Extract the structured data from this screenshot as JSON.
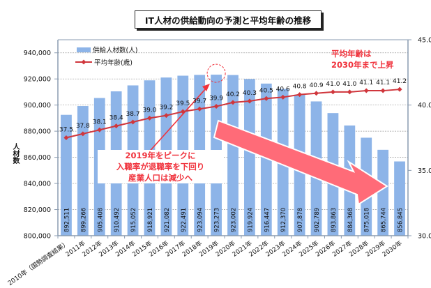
{
  "chart_data": {
    "type": "bar+line",
    "title": "IT人材の供給動向の予測と平均年齢の推移",
    "ylabel": "人材数",
    "y2label": "",
    "ylim": [
      800000,
      950000
    ],
    "yticks": [
      "800,000",
      "820,000",
      "840,000",
      "860,000",
      "880,000",
      "900,000",
      "920,000",
      "940,000"
    ],
    "y2lim": [
      30.0,
      45.0
    ],
    "y2ticks": [
      "30.0",
      "35.0",
      "40.0",
      "45.0"
    ],
    "grid": true,
    "legend_position": "top-left",
    "categories": [
      "2010年（国勢調査結果）",
      "2011年",
      "2012年",
      "2013年",
      "2014年",
      "2015年",
      "2016年",
      "2017年",
      "2018年",
      "2019年",
      "2020年",
      "2021年",
      "2022年",
      "2023年",
      "2024年",
      "2025年",
      "2026年",
      "2027年",
      "2028年",
      "2029年",
      "2030年"
    ],
    "series": [
      {
        "name": "供給人材数(人)",
        "type": "bar",
        "axis": "left",
        "color": "#8db4e8",
        "values": [
          892511,
          899266,
          905408,
          910492,
          915052,
          918921,
          921082,
          922491,
          923094,
          923273,
          923002,
          919924,
          916447,
          912370,
          907878,
          902789,
          893863,
          884368,
          875018,
          865744,
          856845
        ],
        "labels": [
          "892,511",
          "899,266",
          "905,408",
          "910,492",
          "915,052",
          "918,921",
          "921,082",
          "922,491",
          "923,094",
          "923,273",
          "923,002",
          "919,924",
          "916,447",
          "912,370",
          "907,878",
          "902,789",
          "893,863",
          "884,368",
          "875,018",
          "865,744",
          "856,845"
        ]
      },
      {
        "name": "平均年齢(歳)",
        "type": "line",
        "axis": "right",
        "color": "#d0363c",
        "values": [
          37.5,
          37.8,
          38.1,
          38.4,
          38.7,
          39.0,
          39.2,
          39.5,
          39.7,
          39.9,
          40.2,
          40.3,
          40.5,
          40.6,
          40.8,
          40.9,
          41.0,
          41.0,
          41.1,
          41.1,
          41.2
        ],
        "labels": [
          "37.5",
          "37.8",
          "38.1",
          "38.4",
          "38.7",
          "39.0",
          "39.2",
          "39.5",
          "39.7",
          "39.9",
          "40.2",
          "40.3",
          "40.5",
          "40.6",
          "40.8",
          "40.9",
          "41.0",
          "41.0",
          "41.1",
          "41.1",
          "41.2"
        ]
      }
    ],
    "annotations": {
      "age_note": [
        "平均年齢は",
        "2030年まで上昇"
      ],
      "peak_note": [
        "2019年をピークに",
        "入職率が退職率を下回り",
        "産業人口は減少へ"
      ],
      "peak_category": "2019年"
    }
  },
  "colors": {
    "bar": "#8db4e8",
    "line": "#d0363c",
    "arrow": "#ff6b78",
    "annotation_text": "#f0323c"
  }
}
